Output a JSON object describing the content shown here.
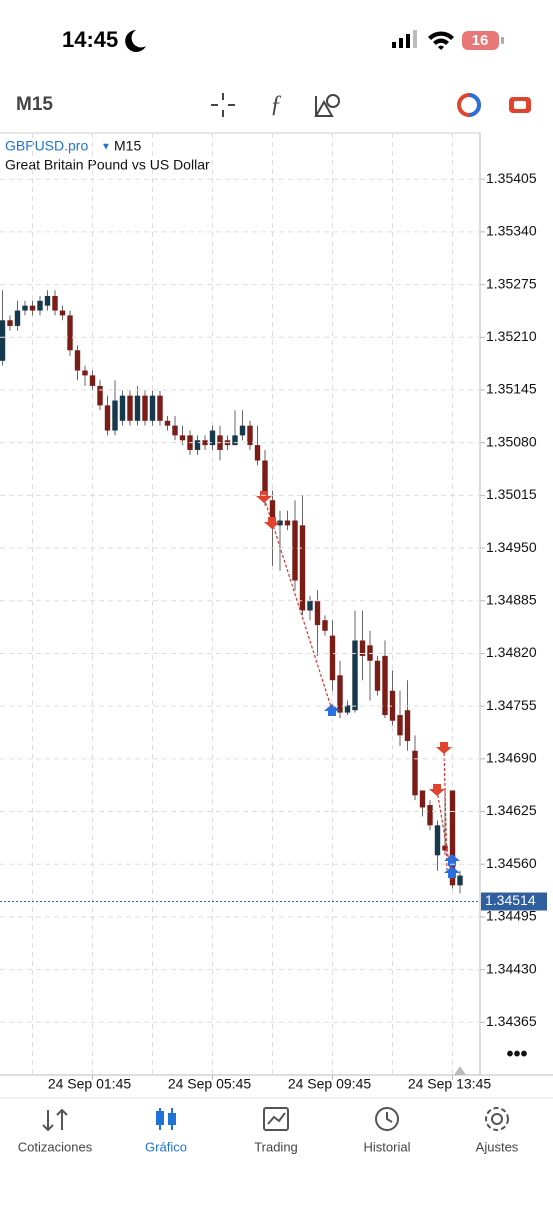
{
  "status_bar": {
    "time": "14:45",
    "battery": "16"
  },
  "toolbar": {
    "timeframe": "M15"
  },
  "chart_data": {
    "type": "candlestick",
    "title": "GBPUSD.pro",
    "timeframe": "M15",
    "subtitle": "Great Britain Pound vs US Dollar",
    "categories": [
      null,
      null,
      null,
      null,
      null,
      null,
      null,
      null,
      null,
      null,
      null,
      null,
      null,
      null,
      "24 Sep 01:45",
      null,
      null,
      null,
      null,
      null,
      null,
      null,
      null,
      null,
      null,
      null,
      null,
      null,
      null,
      null,
      "24 Sep 05:45",
      null,
      null,
      null,
      null,
      null,
      null,
      null,
      null,
      null,
      null,
      null,
      null,
      null,
      null,
      null,
      "24 Sep 09:45",
      null,
      null,
      null,
      null,
      null,
      null,
      null,
      null,
      null,
      null,
      null,
      null,
      null,
      null,
      null,
      "24 Sep 13:45",
      null
    ],
    "open": [
      1.35163,
      1.35181,
      1.35181,
      1.35231,
      1.35224,
      1.35243,
      1.35249,
      1.35243,
      1.35249,
      1.35261,
      1.35243,
      1.35237,
      1.35194,
      1.35169,
      1.35163,
      1.3515,
      1.35126,
      1.35095,
      1.35107,
      1.35138,
      1.35107,
      1.35138,
      1.35107,
      1.35138,
      1.35107,
      1.35101,
      1.35089,
      1.35089,
      1.35071,
      1.35083,
      1.35077,
      1.35089,
      1.35083,
      1.35077,
      1.35089,
      1.35101,
      1.35077,
      1.35058,
      1.35009,
      1.34978,
      1.34984,
      1.34984,
      1.34978,
      1.34873,
      1.34885,
      1.34861,
      1.34842,
      1.34793,
      1.34747,
      1.3475,
      1.34836,
      1.3483,
      1.34811,
      1.34817,
      1.34774,
      1.34744,
      1.3475,
      1.347,
      1.34651,
      1.34633,
      1.34571,
      1.34583,
      1.34651,
      1.34534
    ],
    "high": [
      1.35212,
      1.35218,
      1.35268,
      1.35237,
      1.35255,
      1.35255,
      1.35255,
      1.35261,
      1.35268,
      1.35268,
      1.35249,
      1.35243,
      1.352,
      1.35175,
      1.35169,
      1.35157,
      1.35138,
      1.35157,
      1.35144,
      1.35144,
      1.3515,
      1.35144,
      1.35144,
      1.35144,
      1.35113,
      1.35113,
      1.35101,
      1.35095,
      1.35089,
      1.35089,
      1.35101,
      1.35101,
      1.35089,
      1.3512,
      1.3512,
      1.35107,
      1.35101,
      1.35071,
      1.35021,
      1.34996,
      1.34996,
      1.35009,
      1.35015,
      1.34891,
      1.34898,
      1.34867,
      1.34861,
      1.34811,
      1.34762,
      1.34873,
      1.34873,
      1.34848,
      1.34817,
      1.34836,
      1.34799,
      1.34774,
      1.34787,
      1.34719,
      1.34651,
      1.34639,
      1.34614,
      1.34651,
      1.34651,
      1.34552
    ],
    "low": [
      1.35163,
      1.35175,
      1.35175,
      1.35218,
      1.35218,
      1.35237,
      1.35237,
      1.35237,
      1.35243,
      1.35237,
      1.35231,
      1.35187,
      1.35157,
      1.3515,
      1.35144,
      1.3512,
      1.35089,
      1.35089,
      1.35101,
      1.35101,
      1.35101,
      1.35101,
      1.35101,
      1.35101,
      1.35095,
      1.35083,
      1.35077,
      1.35065,
      1.35065,
      1.35071,
      1.35071,
      1.35058,
      1.35071,
      1.35077,
      1.35083,
      1.35071,
      1.35052,
      1.35002,
      1.34928,
      1.34922,
      1.34972,
      1.34898,
      1.34867,
      1.34861,
      1.34817,
      1.34842,
      1.34774,
      1.3474,
      1.34744,
      1.34747,
      1.34787,
      1.34762,
      1.34768,
      1.3474,
      1.34731,
      1.34706,
      1.347,
      1.34639,
      1.34619,
      1.34602,
      1.34552,
      1.34571,
      1.3453,
      1.34524
    ],
    "close": [
      1.352,
      1.35194,
      1.35231,
      1.35224,
      1.35243,
      1.35249,
      1.35243,
      1.35255,
      1.35261,
      1.35243,
      1.35237,
      1.35194,
      1.35169,
      1.35163,
      1.3515,
      1.35126,
      1.35095,
      1.35132,
      1.35138,
      1.35107,
      1.35138,
      1.35107,
      1.35138,
      1.35107,
      1.35101,
      1.35089,
      1.35083,
      1.35071,
      1.35083,
      1.35077,
      1.35095,
      1.35071,
      1.35077,
      1.35089,
      1.35101,
      1.35077,
      1.35058,
      1.35015,
      1.34978,
      1.34984,
      1.34978,
      1.3491,
      1.34873,
      1.34885,
      1.34855,
      1.34848,
      1.34787,
      1.34747,
      1.34756,
      1.34836,
      1.34817,
      1.34811,
      1.34774,
      1.34744,
      1.34737,
      1.34719,
      1.34712,
      1.34645,
      1.3463,
      1.34608,
      1.34608,
      1.34577,
      1.34534,
      1.34546
    ],
    "colors": {
      "up": "#17394d",
      "down": "#7b1d17",
      "current": "#2f5f9e"
    },
    "ylim": [
      1.343,
      1.35462
    ],
    "yticks": [
      1.35405,
      {
        "value": 1.3534,
        "label": "1.35340"
      },
      1.35275,
      {
        "value": 1.3521,
        "label": "1.35210"
      },
      1.35145,
      {
        "value": 1.3508,
        "label": "1.35080"
      },
      1.35015,
      {
        "value": 1.3495,
        "label": "1.34950"
      },
      1.34885,
      {
        "value": 1.3482,
        "label": "1.34820"
      },
      1.34755,
      {
        "value": 1.3469,
        "label": "1.34690"
      },
      1.34625,
      {
        "value": 1.3456,
        "label": "1.34560"
      },
      1.34495,
      {
        "value": 1.3443,
        "label": "1.34430"
      },
      1.34365
    ],
    "current_price": 1.34514,
    "grid": true
  },
  "nav": {
    "items": [
      "Cotizaciones",
      "Gráfico",
      "Trading",
      "Historial",
      "Ajustes"
    ],
    "active": 1
  }
}
